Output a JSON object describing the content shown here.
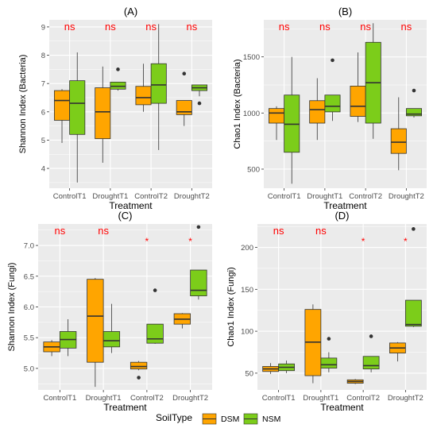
{
  "colors": {
    "panel_bg": "#EBEBEB",
    "grid": "#FFFFFF",
    "DSM": "#FFA500",
    "NSM": "#7CCD1A",
    "sig": "#FF0000",
    "text": "#4D4D4D",
    "title": "#000000"
  },
  "legend": {
    "title": "SoilType",
    "items": [
      "DSM",
      "NSM"
    ],
    "position": "bottom"
  },
  "chart_data": [
    {
      "type": "boxplot",
      "title": "(A)",
      "xlabel": "Treatment",
      "ylabel": "Shannon Index (Bacteria)",
      "ylim": [
        3.3,
        9.25
      ],
      "yticks": [
        4,
        5,
        6,
        7,
        8,
        9
      ],
      "categories": [
        "ControlT1",
        "DroughtT1",
        "ControlT2",
        "DroughtT2"
      ],
      "significance": [
        "ns",
        "ns",
        "ns",
        "ns"
      ],
      "grid": true,
      "series": [
        {
          "name": "DSM",
          "boxes": [
            {
              "min": 4.9,
              "q1": 5.7,
              "median": 6.4,
              "q3": 6.75,
              "max": 6.8,
              "outliers": []
            },
            {
              "min": 4.2,
              "q1": 5.05,
              "median": 6.0,
              "q3": 6.85,
              "max": 7.6,
              "outliers": []
            },
            {
              "min": 6.0,
              "q1": 6.25,
              "median": 6.5,
              "q3": 6.9,
              "max": 7.7,
              "outliers": []
            },
            {
              "min": 5.5,
              "q1": 5.9,
              "median": 6.0,
              "q3": 6.4,
              "max": 6.4,
              "outliers": [
                7.35
              ]
            }
          ]
        },
        {
          "name": "NSM",
          "boxes": [
            {
              "min": 3.5,
              "q1": 5.2,
              "median": 6.3,
              "q3": 7.1,
              "max": 8.1,
              "outliers": []
            },
            {
              "min": 6.75,
              "q1": 6.8,
              "median": 6.9,
              "q3": 7.05,
              "max": 7.05,
              "outliers": [
                7.5
              ]
            },
            {
              "min": 4.65,
              "q1": 6.3,
              "median": 6.95,
              "q3": 7.7,
              "max": 9.1,
              "outliers": []
            },
            {
              "min": 6.55,
              "q1": 6.75,
              "median": 6.85,
              "q3": 6.95,
              "max": 6.95,
              "outliers": [
                6.3
              ]
            }
          ]
        }
      ]
    },
    {
      "type": "boxplot",
      "title": "(B)",
      "xlabel": "Treatment",
      "ylabel": "Chao1 Index (Bacteria)",
      "ylim": [
        330,
        1830
      ],
      "yticks": [
        500,
        1000,
        1500
      ],
      "categories": [
        "ControlT1",
        "DroughtT1",
        "ControlT2",
        "DroughtT2"
      ],
      "significance": [
        "ns",
        "ns",
        "ns",
        "ns"
      ],
      "grid": true,
      "series": [
        {
          "name": "DSM",
          "boxes": [
            {
              "min": 760,
              "q1": 910,
              "median": 1000,
              "q3": 1040,
              "max": 1060,
              "outliers": []
            },
            {
              "min": 760,
              "q1": 910,
              "median": 1030,
              "q3": 1110,
              "max": 1310,
              "outliers": []
            },
            {
              "min": 920,
              "q1": 970,
              "median": 1060,
              "q3": 1240,
              "max": 1540,
              "outliers": []
            },
            {
              "min": 490,
              "q1": 640,
              "median": 740,
              "q3": 860,
              "max": 1140,
              "outliers": []
            }
          ]
        },
        {
          "name": "NSM",
          "boxes": [
            {
              "min": 370,
              "q1": 650,
              "median": 900,
              "q3": 1160,
              "max": 1500,
              "outliers": []
            },
            {
              "min": 930,
              "q1": 1010,
              "median": 1060,
              "q3": 1160,
              "max": 1160,
              "outliers": [
                1470
              ]
            },
            {
              "min": 770,
              "q1": 910,
              "median": 1270,
              "q3": 1630,
              "max": 1800,
              "outliers": []
            },
            {
              "min": 960,
              "q1": 975,
              "median": 990,
              "q3": 1040,
              "max": 1040,
              "outliers": [
                1200
              ]
            }
          ]
        }
      ]
    },
    {
      "type": "boxplot",
      "title": "(C)",
      "xlabel": "Treatment",
      "ylabel": "Shannon Index (Fungi)",
      "ylim": [
        4.65,
        7.35
      ],
      "yticks": [
        5.0,
        5.5,
        6.0,
        6.5,
        7.0
      ],
      "ytick_labels": [
        "5.0",
        "5.5",
        "6.0",
        "6.5",
        "7.0"
      ],
      "categories": [
        "ControlT1",
        "DroughtT1",
        "ControlT2",
        "DroughtT2"
      ],
      "significance": [
        "ns",
        "ns",
        "*",
        "*"
      ],
      "grid": true,
      "series": [
        {
          "name": "DSM",
          "boxes": [
            {
              "min": 5.2,
              "q1": 5.27,
              "median": 5.35,
              "q3": 5.43,
              "max": 5.46,
              "outliers": []
            },
            {
              "min": 4.7,
              "q1": 5.1,
              "median": 5.85,
              "q3": 6.45,
              "max": 6.47,
              "outliers": []
            },
            {
              "min": 4.97,
              "q1": 4.99,
              "median": 5.03,
              "q3": 5.1,
              "max": 5.12,
              "outliers": [
                4.85
              ]
            },
            {
              "min": 5.65,
              "q1": 5.72,
              "median": 5.8,
              "q3": 5.89,
              "max": 5.9,
              "outliers": []
            }
          ]
        },
        {
          "name": "NSM",
          "boxes": [
            {
              "min": 5.2,
              "q1": 5.33,
              "median": 5.47,
              "q3": 5.6,
              "max": 5.8,
              "outliers": []
            },
            {
              "min": 5.25,
              "q1": 5.35,
              "median": 5.45,
              "q3": 5.6,
              "max": 6.05,
              "outliers": []
            },
            {
              "min": 5.4,
              "q1": 5.41,
              "median": 5.48,
              "q3": 5.72,
              "max": 5.72,
              "outliers": [
                6.27
              ]
            },
            {
              "min": 6.12,
              "q1": 6.18,
              "median": 6.27,
              "q3": 6.6,
              "max": 6.6,
              "outliers": [
                7.3
              ]
            }
          ]
        }
      ]
    },
    {
      "type": "boxplot",
      "title": "(D)",
      "xlabel": "Treatment",
      "ylabel": "Chao1 Index (Fungi)",
      "ylim": [
        30,
        228
      ],
      "yticks": [
        50,
        100,
        150,
        200
      ],
      "categories": [
        "ControlT1",
        "DroughtT1",
        "ControlT2",
        "DroughtT2"
      ],
      "significance": [
        "ns",
        "ns",
        "*",
        "*"
      ],
      "grid": true,
      "series": [
        {
          "name": "DSM",
          "boxes": [
            {
              "min": 49,
              "q1": 52,
              "median": 55,
              "q3": 58,
              "max": 62,
              "outliers": []
            },
            {
              "min": 38,
              "q1": 47,
              "median": 87,
              "q3": 126,
              "max": 132,
              "outliers": []
            },
            {
              "min": 37,
              "q1": 38,
              "median": 40,
              "q3": 42,
              "max": 43,
              "outliers": []
            },
            {
              "min": 64,
              "q1": 74,
              "median": 80,
              "q3": 86,
              "max": 87,
              "outliers": []
            }
          ]
        },
        {
          "name": "NSM",
          "boxes": [
            {
              "min": 50,
              "q1": 53,
              "median": 57,
              "q3": 61,
              "max": 65,
              "outliers": []
            },
            {
              "min": 51,
              "q1": 56,
              "median": 60,
              "q3": 68,
              "max": 75,
              "outliers": [
                91
              ]
            },
            {
              "min": 51,
              "q1": 55,
              "median": 59,
              "q3": 70,
              "max": 70,
              "outliers": [
                94
              ]
            },
            {
              "min": 105,
              "q1": 106,
              "median": 108,
              "q3": 137,
              "max": 137,
              "outliers": [
                222
              ]
            }
          ]
        }
      ]
    }
  ]
}
